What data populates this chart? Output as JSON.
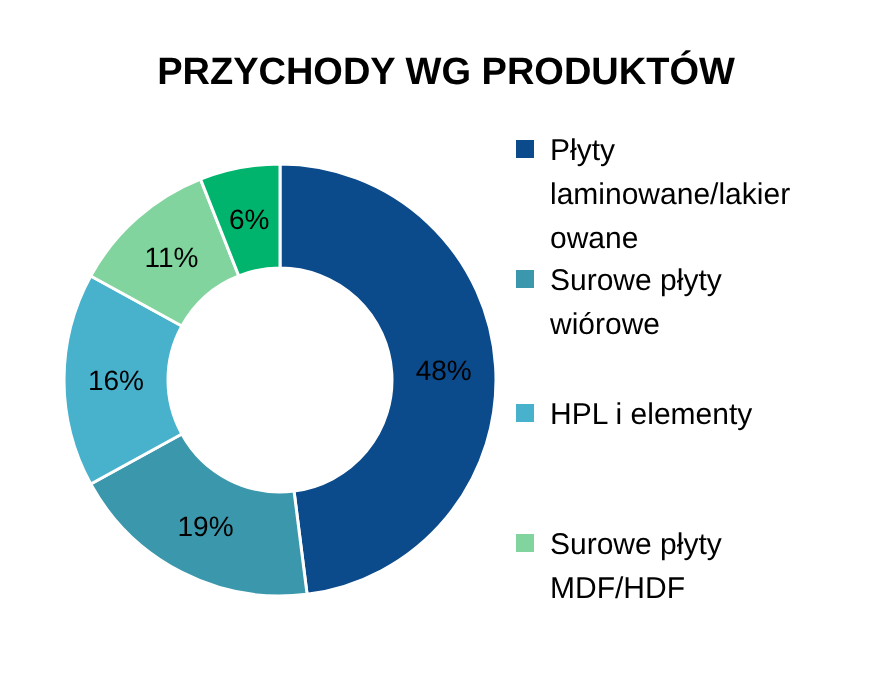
{
  "chart_data": {
    "type": "donut",
    "title": "PRZYCHODY WG PRODUKTÓW",
    "categories": [
      "Płyty laminowane/lakierowane",
      "Surowe płyty wiórowe",
      "HPL i elementy",
      "Surowe płyty MDF/HDF",
      null
    ],
    "values": [
      48,
      19,
      16,
      11,
      6
    ],
    "colors": [
      "#0b4a8b",
      "#3b97ab",
      "#48b2cc",
      "#82d49e",
      "#00b46e"
    ],
    "value_labels": [
      "48%",
      "19%",
      "16%",
      "11%",
      "6%"
    ],
    "legend": "right"
  }
}
